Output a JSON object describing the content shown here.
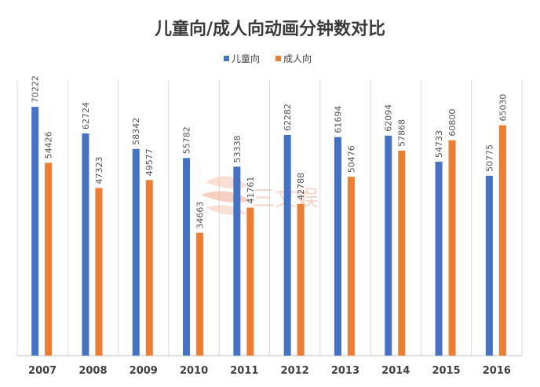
{
  "chart_data": {
    "type": "bar",
    "title": "儿童向/成人向动画分钟数对比",
    "xlabel": "",
    "ylabel": "",
    "ylim": [
      0,
      80000
    ],
    "grid": "vertical-category-separators",
    "legend_position": "top-center",
    "categories": [
      "2007",
      "2008",
      "2009",
      "2010",
      "2011",
      "2012",
      "2013",
      "2014",
      "2015",
      "2016"
    ],
    "series": [
      {
        "name": "儿童向",
        "color": "#4472c4",
        "values": [
          70222,
          62724,
          58342,
          55782,
          53338,
          62282,
          61694,
          62094,
          54733,
          50775
        ]
      },
      {
        "name": "成人向",
        "color": "#ed7d31",
        "values": [
          54426,
          47323,
          49577,
          34663,
          41761,
          42788,
          50476,
          57868,
          60800,
          65030
        ]
      }
    ]
  },
  "watermark": {
    "text": "三文娱",
    "color": "#f4b6a0"
  }
}
